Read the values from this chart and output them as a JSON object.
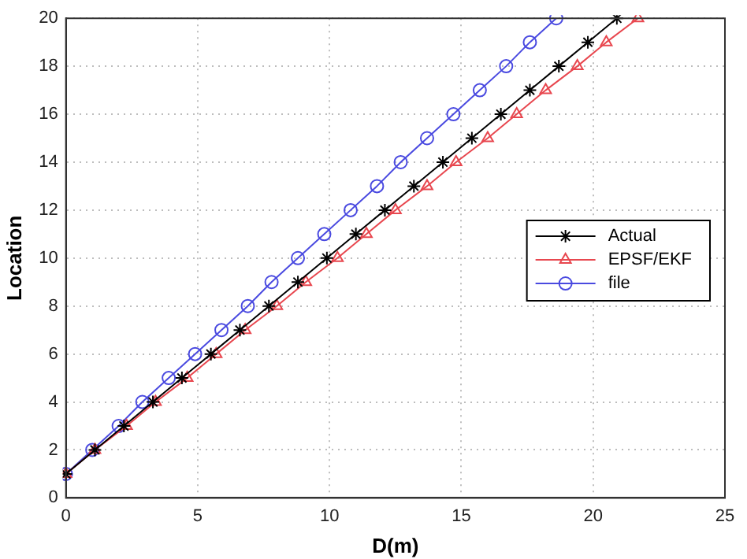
{
  "chart_data": {
    "type": "line",
    "xlabel": "D(m)",
    "ylabel": "Location",
    "xlim": [
      0,
      25
    ],
    "xticks": [
      0,
      5,
      10,
      15,
      20,
      25
    ],
    "ylim": [
      0,
      20
    ],
    "yticks": [
      0,
      2,
      4,
      6,
      8,
      10,
      12,
      14,
      16,
      18,
      20
    ],
    "grid": true,
    "legend": "right",
    "line_style": "solid",
    "series": [
      {
        "name": "Actual",
        "color": "#000000",
        "marker": "cross",
        "x": [
          0,
          1.1,
          2.2,
          3.3,
          4.4,
          5.5,
          6.6,
          7.7,
          8.8,
          9.9,
          11.0,
          12.1,
          13.2,
          14.3,
          15.4,
          16.5,
          17.6,
          18.7,
          19.8,
          20.9
        ],
        "values": [
          1,
          2,
          3,
          4,
          5,
          6,
          7,
          8,
          9,
          10,
          11,
          12,
          13,
          14,
          15,
          16,
          17,
          18,
          19,
          20
        ]
      },
      {
        "name": "EPSF/EKF",
        "color": "#e8474f",
        "marker": "triangle",
        "x": [
          0,
          1.1,
          2.3,
          3.4,
          4.6,
          5.7,
          6.8,
          8.0,
          9.1,
          10.3,
          11.4,
          12.5,
          13.7,
          14.8,
          16.0,
          17.1,
          18.2,
          19.4,
          20.5,
          21.7
        ],
        "values": [
          1,
          2,
          3,
          4,
          5,
          6,
          7,
          8,
          9,
          10,
          11,
          12,
          13,
          14,
          15,
          16,
          17,
          18,
          19,
          20
        ]
      },
      {
        "name": "file",
        "color": "#4a4ae0",
        "marker": "circle",
        "x": [
          0,
          1.0,
          2.0,
          2.9,
          3.9,
          4.9,
          5.9,
          6.9,
          7.8,
          8.8,
          9.8,
          10.8,
          11.8,
          12.7,
          13.7,
          14.7,
          15.7,
          16.7,
          17.6,
          18.6
        ],
        "values": [
          1,
          2,
          3,
          4,
          5,
          6,
          7,
          8,
          9,
          10,
          11,
          12,
          13,
          14,
          15,
          16,
          17,
          18,
          19,
          20
        ]
      }
    ]
  }
}
